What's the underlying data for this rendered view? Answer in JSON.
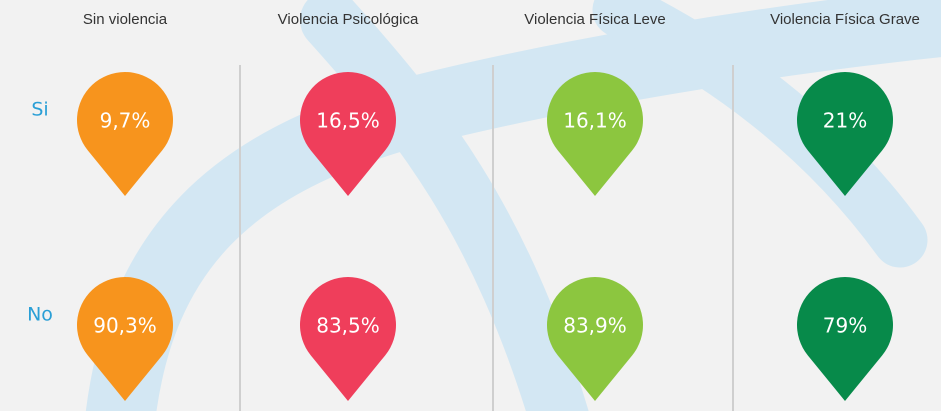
{
  "rows": [
    "Si",
    "No"
  ],
  "columns": [
    {
      "header": "Sin violencia",
      "color": "#f7941d",
      "cells": [
        "9,7%",
        "90,3%"
      ]
    },
    {
      "header": "Violencia Psicológica",
      "color": "#ef3e5b",
      "cells": [
        "16,5%",
        "83,5%"
      ]
    },
    {
      "header": "Violencia Física Leve",
      "color": "#8cc63f",
      "cells": [
        "16,1%",
        "83,9%"
      ]
    },
    {
      "header": "Violencia Física Grave",
      "color": "#078a4a",
      "cells": [
        "21%",
        "79%"
      ]
    }
  ]
}
